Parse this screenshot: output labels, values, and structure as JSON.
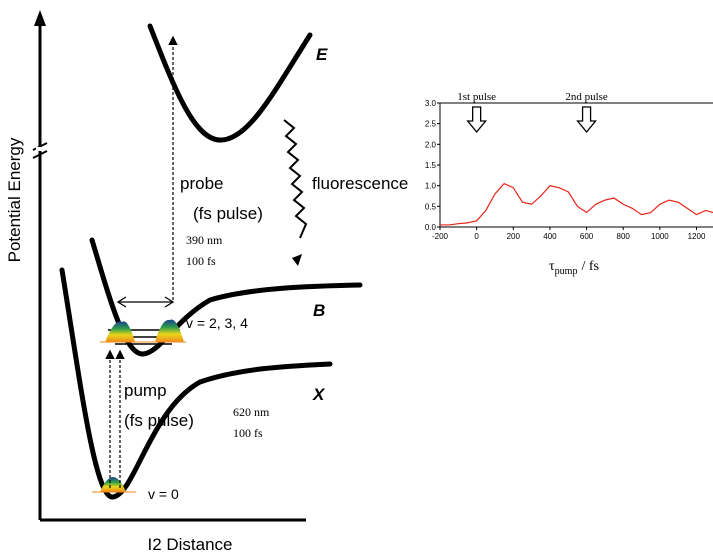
{
  "diagram": {
    "y_axis_label": "Potential Energy",
    "x_axis_label": "I2 Distance",
    "states": {
      "E": "E",
      "B": "B",
      "X": "X"
    },
    "probe": {
      "label": "probe",
      "pulse": "(fs pulse)",
      "wavelength": "390 nm",
      "duration": "100 fs"
    },
    "pump": {
      "label": "pump",
      "pulse": "(fs pulse)",
      "wavelength": "620 nm",
      "duration": "100 fs"
    },
    "fluorescence": "fluorescence",
    "levels_b": "v = 2, 3, 4",
    "level_x": "v = 0"
  },
  "chart_data": {
    "type": "line",
    "x_label": {
      "symbol": "τ",
      "subscript": "pump",
      "unit": "/ fs"
    },
    "annotations": [
      {
        "text": "1st pulse",
        "x": 0
      },
      {
        "text": "2nd pulse",
        "x": 600
      }
    ],
    "x": [
      -200,
      -150,
      -100,
      -50,
      0,
      50,
      100,
      150,
      200,
      250,
      300,
      350,
      400,
      450,
      500,
      550,
      600,
      650,
      700,
      750,
      800,
      850,
      900,
      950,
      1000,
      1050,
      1100,
      1150,
      1200,
      1250,
      1290
    ],
    "series": [
      {
        "color": "#e8251b",
        "values": [
          0.05,
          0.05,
          0.08,
          0.1,
          0.15,
          0.4,
          0.8,
          1.05,
          0.95,
          0.6,
          0.55,
          0.75,
          1.0,
          0.95,
          0.85,
          0.5,
          0.35,
          0.55,
          0.65,
          0.7,
          0.55,
          0.45,
          0.3,
          0.35,
          0.55,
          0.65,
          0.6,
          0.45,
          0.3,
          0.4,
          0.35
        ]
      }
    ],
    "xlim": [
      -200,
      1290
    ],
    "ylim": [
      0,
      3
    ],
    "xticks": [
      -200,
      0,
      200,
      400,
      600,
      800,
      1000,
      1200
    ],
    "yticks": [
      {
        "value": 0,
        "label": "0.0"
      },
      0.5,
      {
        "value": 1,
        "label": "1.0"
      },
      1.5,
      {
        "value": 2,
        "label": "2.0"
      },
      2.5,
      {
        "value": 3,
        "label": "3.0"
      }
    ]
  }
}
